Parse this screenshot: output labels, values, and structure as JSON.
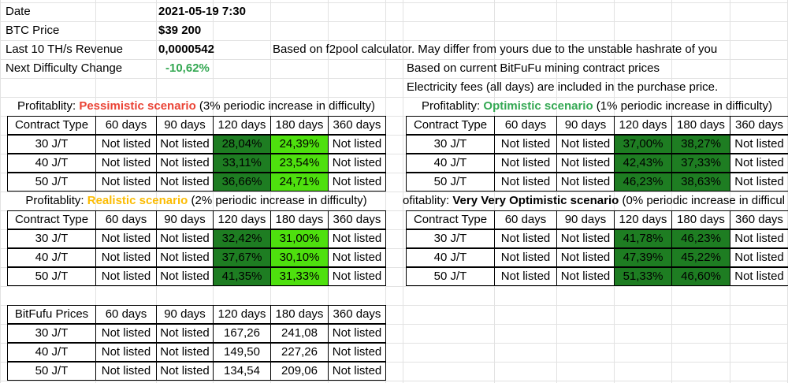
{
  "info": {
    "date_label": "Date",
    "date_value": "2021-05-19 7:30",
    "btc_label": "BTC Price",
    "btc_value": "$39 200",
    "revenue_label": "Last 10 TH/s Revenue",
    "revenue_value": "0,0000542",
    "difficulty_label": "Next Difficulty Change",
    "difficulty_value": "-10,62%",
    "note_calculator": "Based on f2pool calculator. May differ from yours due to the unstable hashrate of you",
    "note_prices": "Based on current BitFuFu mining contract prices",
    "note_fees": "Electricity fees (all days) are included in the purchase price."
  },
  "columns": [
    "Contract Type",
    "60 days",
    "90 days",
    "120 days",
    "180 days",
    "360 days"
  ],
  "tables": {
    "pessimistic": {
      "prefix": "Profitablity: ",
      "scenario": "Pessimistic scenario",
      "suffix": " (3% periodic increase in difficulty)",
      "rows": [
        [
          "30 J/T",
          "Not listed",
          "Not listed",
          "28,04%",
          "24,39%",
          "Not listed"
        ],
        [
          "40 J/T",
          "Not listed",
          "Not listed",
          "33,11%",
          "23,54%",
          "Not listed"
        ],
        [
          "50 J/T",
          "Not listed",
          "Not listed",
          "36,66%",
          "24,71%",
          "Not listed"
        ]
      ]
    },
    "optimistic": {
      "prefix": "Profitablity: ",
      "scenario": "Optimistic scenario",
      "suffix": " (1% periodic increase in difficulty)",
      "rows": [
        [
          "30 J/T",
          "Not listed",
          "Not listed",
          "37,00%",
          "38,27%",
          "Not listed"
        ],
        [
          "40 J/T",
          "Not listed",
          "Not listed",
          "42,43%",
          "37,33%",
          "Not listed"
        ],
        [
          "50 J/T",
          "Not listed",
          "Not listed",
          "46,23%",
          "38,63%",
          "Not listed"
        ]
      ]
    },
    "realistic": {
      "prefix": "Profitablity: ",
      "scenario": "Realistic scenario",
      "suffix": " (2% periodic increase in difficulty)",
      "rows": [
        [
          "30 J/T",
          "Not listed",
          "Not listed",
          "32,42%",
          "31,00%",
          "Not listed"
        ],
        [
          "40 J/T",
          "Not listed",
          "Not listed",
          "37,67%",
          "30,10%",
          "Not listed"
        ],
        [
          "50 J/T",
          "Not listed",
          "Not listed",
          "41,35%",
          "31,33%",
          "Not listed"
        ]
      ]
    },
    "very_optimistic": {
      "prefix": "ofitablity: ",
      "scenario": "Very Very Optimistic scenario",
      "suffix": " (0% periodic increase in difficul",
      "rows": [
        [
          "30 J/T",
          "Not listed",
          "Not listed",
          "41,78%",
          "46,23%",
          "Not listed"
        ],
        [
          "40 J/T",
          "Not listed",
          "Not listed",
          "47,39%",
          "45,22%",
          "Not listed"
        ],
        [
          "50 J/T",
          "Not listed",
          "Not listed",
          "51,33%",
          "46,60%",
          "Not listed"
        ]
      ]
    },
    "prices": {
      "header": [
        "BitFufu Prices",
        "60 days",
        "90 days",
        "120 days",
        "180 days",
        "360 days"
      ],
      "rows": [
        [
          "30 J/T",
          "Not listed",
          "Not listed",
          "167,26",
          "241,08",
          "Not listed"
        ],
        [
          "40 J/T",
          "Not listed",
          "Not listed",
          "149,50",
          "227,26",
          "Not listed"
        ],
        [
          "50 J/T",
          "Not listed",
          "Not listed",
          "134,54",
          "209,06",
          "Not listed"
        ]
      ]
    }
  },
  "colors": {
    "dark_green": "#1e7d22",
    "bright_green": "#4ee00e",
    "grid": "#e2e2e2",
    "red": "#ea4335",
    "green": "#34a853",
    "yellow": "#fbbc04"
  }
}
